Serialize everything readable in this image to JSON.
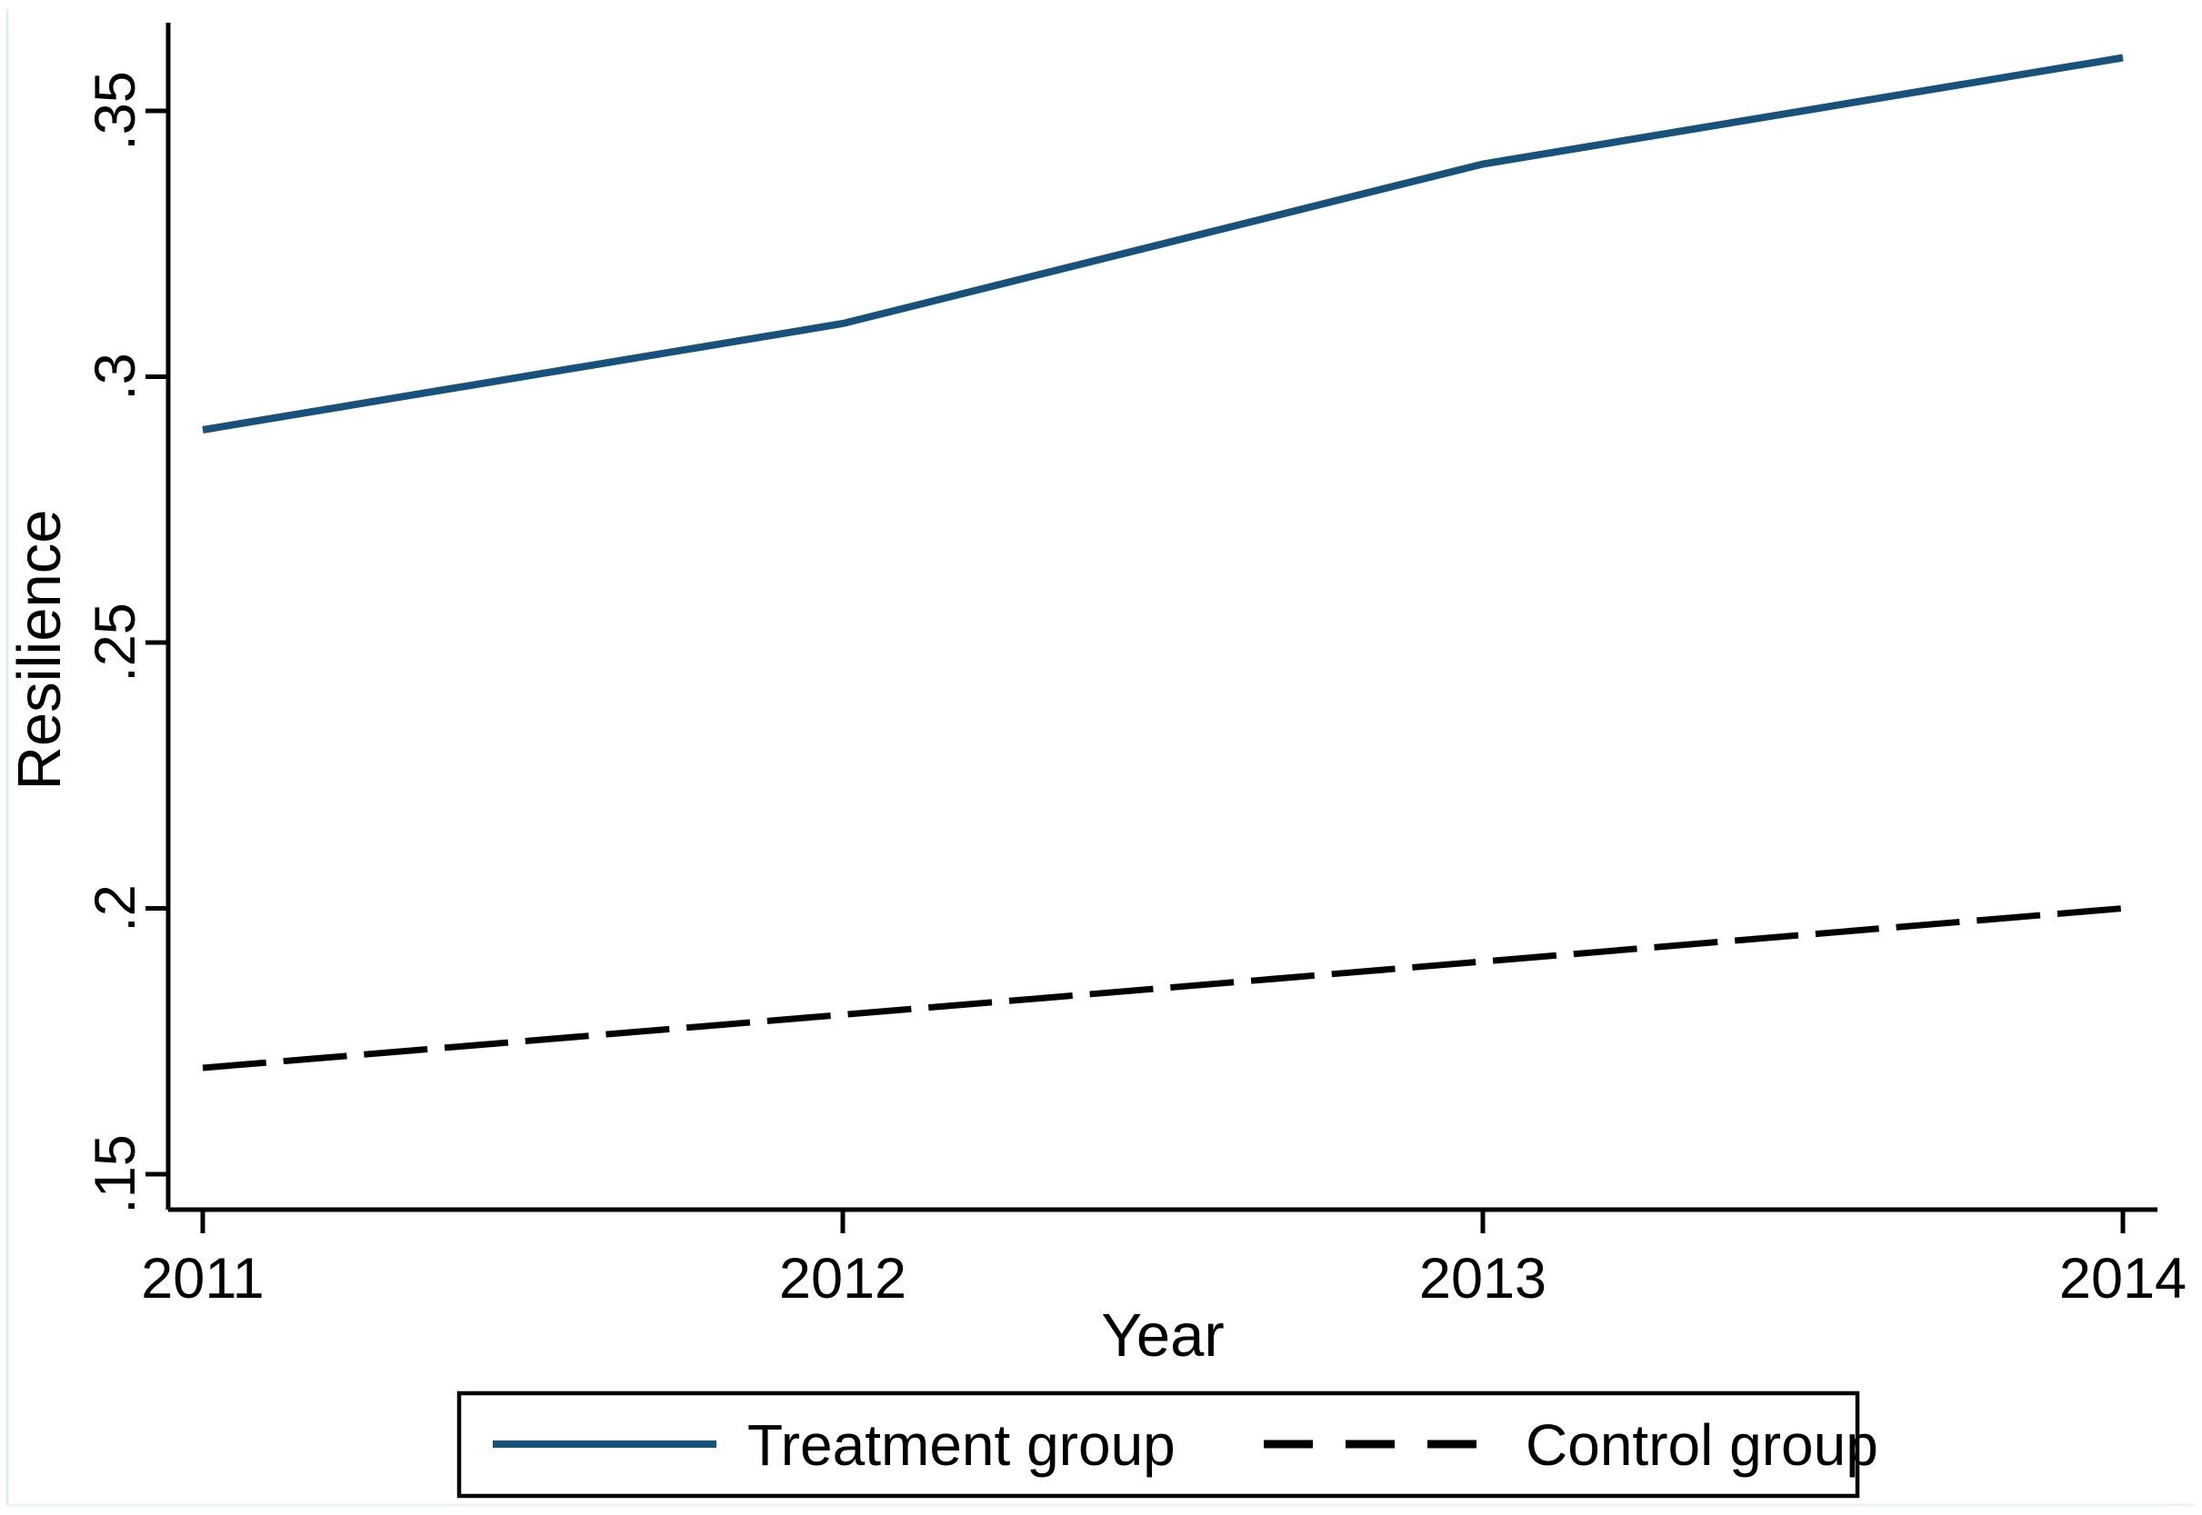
{
  "chart_data": {
    "type": "line",
    "x": [
      2011,
      2012,
      2013,
      2014
    ],
    "series": [
      {
        "name": "Treatment group",
        "values": [
          0.29,
          0.31,
          0.34,
          0.36
        ],
        "color": "#16527c",
        "style": "solid"
      },
      {
        "name": "Control group",
        "values": [
          0.17,
          0.18,
          0.19,
          0.2
        ],
        "color": "#000000",
        "style": "dashed"
      }
    ],
    "title": "",
    "xlabel": "Year",
    "ylabel": "Resilience",
    "xlim": [
      2011,
      2014
    ],
    "ylim": [
      0.143,
      0.3665
    ],
    "xticks": {
      "values": [
        2011,
        2012,
        2013,
        2014
      ],
      "labels": [
        "2011",
        "2012",
        "2013",
        "2014"
      ]
    },
    "yticks": {
      "values": [
        0.15,
        0.2,
        0.25,
        0.3,
        0.35
      ],
      "labels": [
        ".15",
        ".2",
        ".25",
        ".3",
        ".35"
      ]
    },
    "grid": "off",
    "legend_position": "bottom",
    "axis_color": "#000000",
    "background_color": "#ffffff"
  }
}
